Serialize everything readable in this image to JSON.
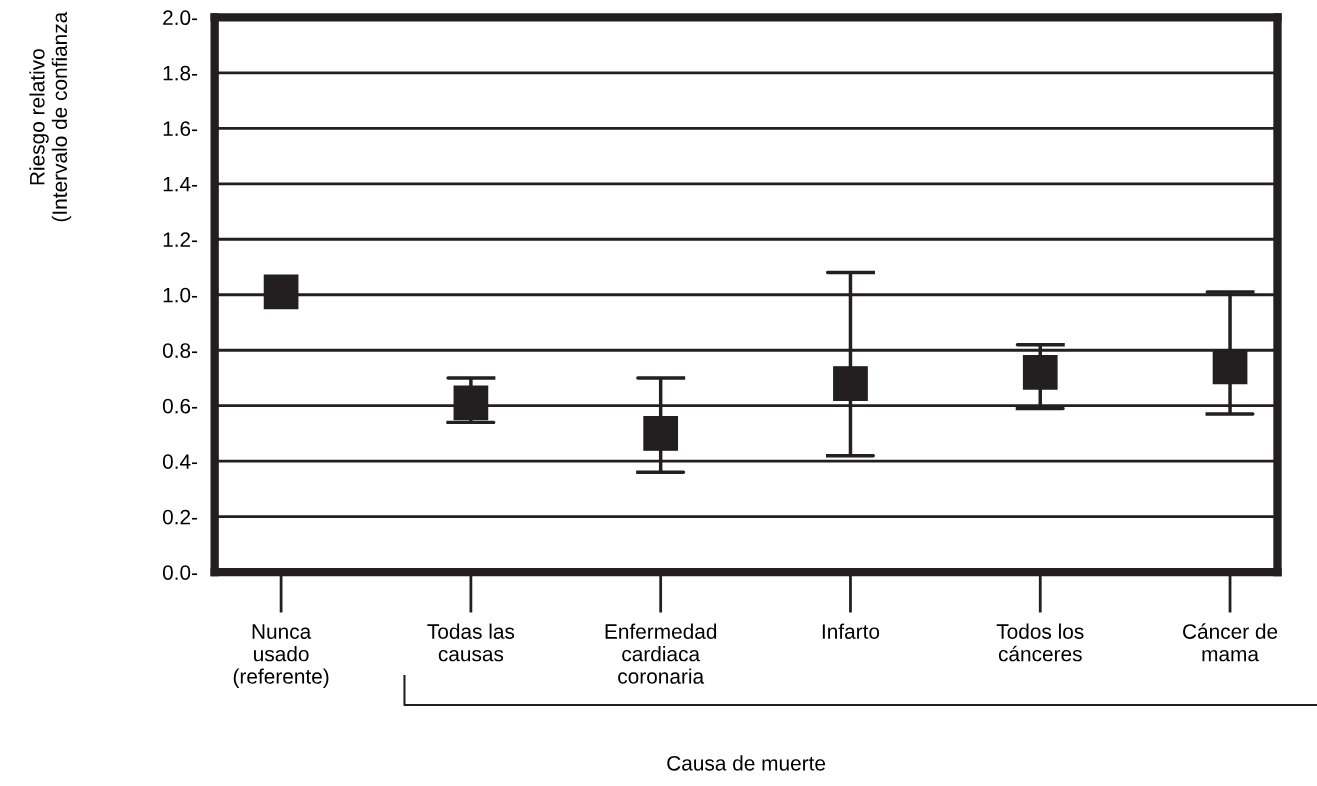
{
  "chart_data": {
    "type": "scatter",
    "categories": [
      "Nunca\nusado\n(referente)",
      "Todas las\ncausas",
      "Enfermedad\ncardiaca\ncoronaria",
      "Infarto",
      "Todos los\ncánceres",
      "Cáncer de\nmama"
    ],
    "series": [
      {
        "color": "#231f20",
        "values": [
          1.01,
          0.61,
          0.5,
          0.68,
          0.72,
          0.74
        ],
        "errors": [
          null,
          [
            0.54,
            0.7
          ],
          [
            0.36,
            0.7
          ],
          [
            0.42,
            1.08
          ],
          [
            0.59,
            0.82
          ],
          [
            0.57,
            1.01
          ]
        ]
      }
    ],
    "ylabel": "Riesgo relativo\n(Intervalo de confianza",
    "xlabel": "Causa de muerte",
    "ylim": [
      0,
      2.0
    ],
    "yticks": [
      {
        "value": 0,
        "label": "0.0-"
      },
      {
        "value": 0.2,
        "label": "0.2-"
      },
      {
        "value": 0.4,
        "label": "0.4-"
      },
      {
        "value": 0.6,
        "label": "0.6-"
      },
      {
        "value": 0.8,
        "label": "0.8-"
      },
      {
        "value": 1.0,
        "label": "1.0-"
      },
      {
        "value": 1.2,
        "label": "1.2-"
      },
      {
        "value": 1.4,
        "label": "1.4-"
      },
      {
        "value": 1.6,
        "label": "1.6-"
      },
      {
        "value": 1.8,
        "label": "1.8-"
      },
      {
        "value": 2.0,
        "label": "2.0-"
      }
    ],
    "grid": "y",
    "marker": "square"
  }
}
